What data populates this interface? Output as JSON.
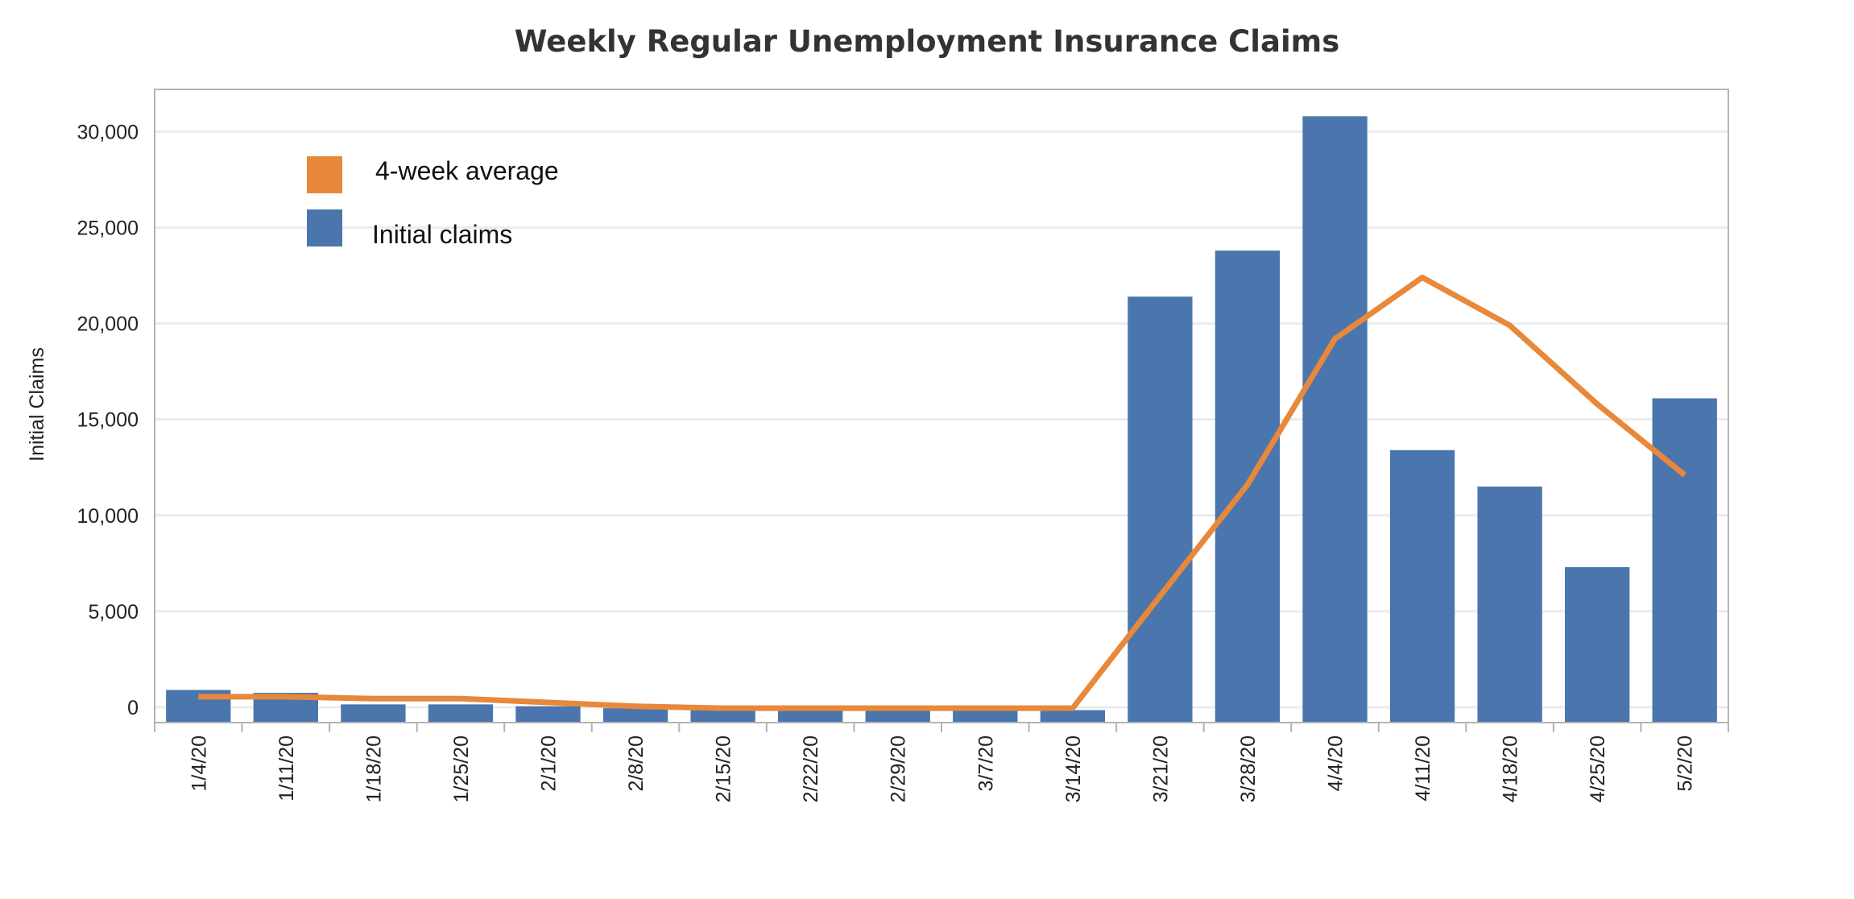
{
  "chart_data": {
    "type": "bar",
    "title": "Weekly Regular Unemployment Insurance Claims",
    "xlabel": "",
    "ylabel": "Initial Claims",
    "ylim": [
      -800,
      32200
    ],
    "yticks": [
      {
        "value": 0,
        "label": "0"
      },
      {
        "value": 5000,
        "label": "5,000"
      },
      {
        "value": 10000,
        "label": "10,000"
      },
      {
        "value": 15000,
        "label": "15,000"
      },
      {
        "value": 20000,
        "label": "20,000"
      },
      {
        "value": 25000,
        "label": "25,000"
      },
      {
        "value": 30000,
        "label": "30,000"
      }
    ],
    "grid": true,
    "legend_position": "top-left",
    "categories": [
      "1/4/20",
      "1/11/20",
      "1/18/20",
      "1/25/20",
      "2/1/20",
      "2/8/20",
      "2/15/20",
      "2/22/20",
      "2/29/20",
      "3/7/20",
      "3/14/20",
      "3/21/20",
      "3/28/20",
      "4/4/20",
      "4/11/20",
      "4/18/20",
      "4/25/20",
      "5/2/20"
    ],
    "series": [
      {
        "name": "Initial claims",
        "kind": "bar",
        "color": "#4a76ad",
        "values": [
          900,
          750,
          150,
          150,
          50,
          -50,
          -100,
          -150,
          -150,
          -200,
          -150,
          21400,
          23800,
          30800,
          13400,
          11500,
          7300,
          16100
        ]
      },
      {
        "name": "4-week average",
        "kind": "line",
        "color": "#e8883a",
        "values": [
          550,
          550,
          450,
          450,
          250,
          50,
          -50,
          -50,
          -50,
          -50,
          -50,
          5800,
          11600,
          19200,
          22400,
          19900,
          15800,
          12100
        ]
      }
    ]
  }
}
